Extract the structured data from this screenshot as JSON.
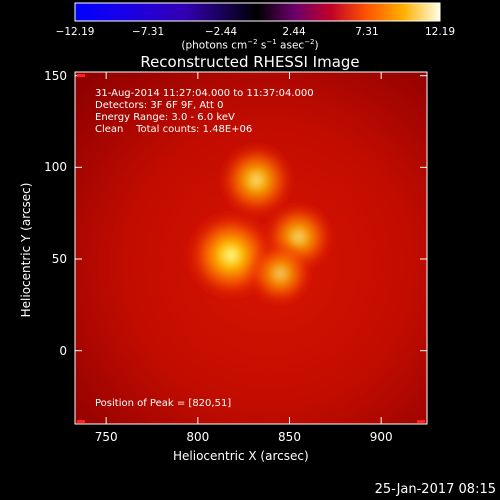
{
  "colorbar": {
    "tick_labels": [
      "−12.19",
      "−7.31",
      "−2.44",
      "2.44",
      "7.31",
      "12.19"
    ],
    "units": {
      "prefix": "(photons cm",
      "exp1": "−2",
      "mid1": " s",
      "exp2": "−1",
      "mid2": " asec",
      "exp3": "−2",
      "suffix": ")"
    },
    "range": [
      -12.19,
      12.19
    ]
  },
  "title": "Reconstructed RHESSI Image",
  "info": {
    "time_range": "31-Aug-2014 11:27:04.000 to 11:37:04.000",
    "detectors": "Detectors: 3F 6F 9F, Att 0",
    "energy_range": "Energy Range: 3.0 - 6.0 keV",
    "algorithm": "Clean    Total counts: 1.48E+06"
  },
  "peak_position": "Position of Peak = [820,51]",
  "axes": {
    "x_label": "Heliocentric X (arcsec)",
    "y_label": "Heliocentric Y (arcsec)",
    "x_ticks": [
      "750",
      "800",
      "850",
      "900"
    ],
    "y_ticks": [
      "0",
      "50",
      "100",
      "150"
    ],
    "x_range": [
      733,
      925
    ],
    "y_range": [
      -40,
      152
    ]
  },
  "sources": [
    {
      "x": 818,
      "y": 52,
      "peak": 1.0
    },
    {
      "x": 832,
      "y": 93,
      "peak": 0.72
    },
    {
      "x": 855,
      "y": 62,
      "peak": 0.62
    },
    {
      "x": 845,
      "y": 42,
      "peak": 0.5
    }
  ],
  "timestamp": "25-Jan-2017 08:15"
}
